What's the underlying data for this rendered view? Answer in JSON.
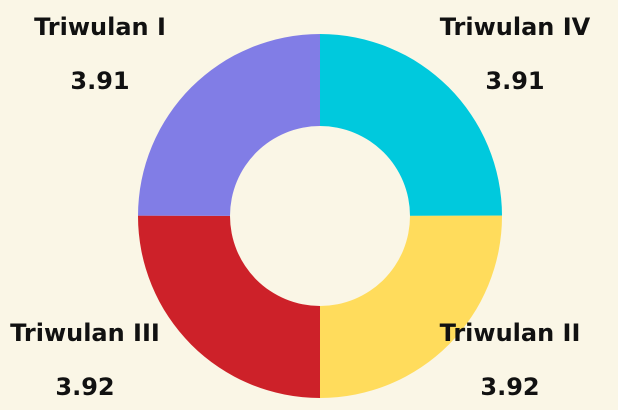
{
  "chart_data": {
    "type": "donut",
    "categories": [
      "Triwulan IV",
      "Triwulan II",
      "Triwulan III",
      "Triwulan I"
    ],
    "values": [
      3.91,
      3.92,
      3.92,
      3.91
    ],
    "colors": [
      "#00c9dd",
      "#ffdc5c",
      "#cd2129",
      "#817de6"
    ]
  }
}
